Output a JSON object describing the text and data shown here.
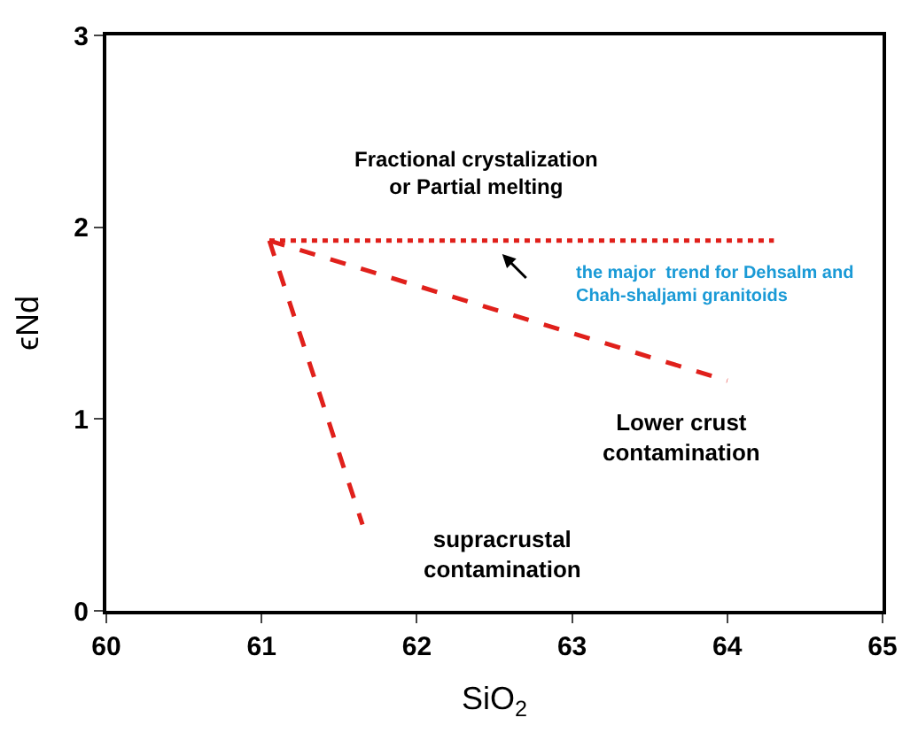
{
  "chart_data": {
    "type": "line",
    "xlabel": "SiO$_{2}$",
    "ylabel": "ϵNd",
    "xlim": [
      60,
      65
    ],
    "ylim": [
      0,
      3
    ],
    "xticks": [
      60,
      61,
      62,
      63,
      64,
      65
    ],
    "yticks": [
      0,
      1,
      2,
      3
    ],
    "legend": false,
    "series": [
      {
        "color": "#e0201b",
        "x": [
          61.05,
          64.3
        ],
        "values": [
          1.93,
          1.93
        ],
        "line_style": "dotted"
      },
      {
        "color": "#e0201b",
        "x": [
          61.05,
          64.0
        ],
        "values": [
          1.93,
          1.2
        ],
        "line_style": "dashed"
      },
      {
        "color": "#e0201b",
        "x": [
          61.05,
          61.65
        ],
        "values": [
          1.93,
          0.45
        ],
        "line_style": "dashed"
      }
    ],
    "annotations": [
      "Fractional crystalization\nor Partial melting",
      "Lower crust\ncontamination",
      "the major  trend for Dehsalm and\nChah-shaljami granitoids",
      "supracrustal\ncontamination"
    ]
  }
}
